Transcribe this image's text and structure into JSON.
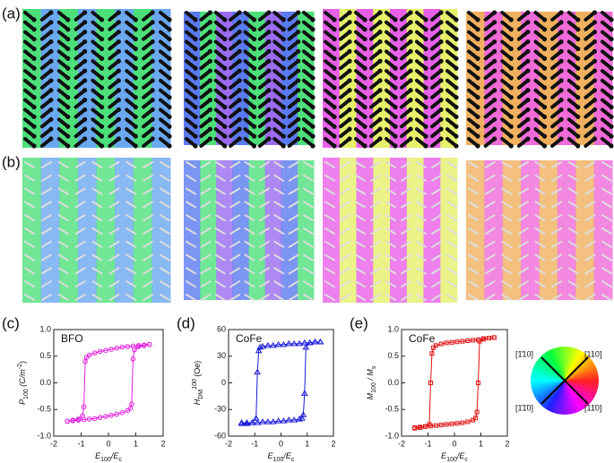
{
  "figure": {
    "panel_labels": [
      "(a)",
      "(b)"
    ],
    "wheel_labels": [
      "[1̄10]",
      "[110]",
      "[1̄1̄0]",
      "[11̄0]"
    ]
  },
  "chart_data": [
    {
      "type": "line",
      "panel": "(c)",
      "annotation": "BFO",
      "color": "#e020e0",
      "marker": "circle",
      "xlabel": [
        {
          "t": "E"
        },
        {
          "t": "100",
          "s": "sub"
        },
        {
          "t": "/E"
        },
        {
          "t": "c",
          "s": "sub"
        }
      ],
      "ylabel": [
        {
          "t": "P"
        },
        {
          "t": "100",
          "s": "sub"
        },
        {
          "t": " (C/m"
        },
        {
          "t": "-2",
          "s": "sup"
        },
        {
          "t": ")"
        }
      ],
      "x": [
        -1.5,
        -1.3,
        -1.1,
        -0.9,
        -0.7,
        -0.5,
        -0.3,
        -0.1,
        0.1,
        0.3,
        0.5,
        0.7,
        0.8,
        0.85,
        0.9,
        0.95,
        1.1,
        1.3,
        1.5,
        1.5,
        1.3,
        1.1,
        0.9,
        0.7,
        0.5,
        0.3,
        0.1,
        -0.1,
        -0.3,
        -0.5,
        -0.7,
        -0.8,
        -0.85,
        -0.9,
        -0.95,
        -1.1,
        -1.3,
        -1.5
      ],
      "values": [
        -0.72,
        -0.71,
        -0.7,
        -0.69,
        -0.68,
        -0.67,
        -0.65,
        -0.63,
        -0.61,
        -0.59,
        -0.56,
        -0.52,
        -0.48,
        -0.4,
        0.45,
        0.62,
        0.68,
        0.7,
        0.72,
        0.72,
        0.71,
        0.7,
        0.69,
        0.68,
        0.67,
        0.65,
        0.63,
        0.61,
        0.59,
        0.56,
        0.52,
        0.48,
        0.4,
        -0.45,
        -0.62,
        -0.68,
        -0.7,
        -0.72
      ],
      "xlim": [
        -2,
        2
      ],
      "xticks": [
        -2,
        -1,
        0,
        1,
        2
      ],
      "ylim": [
        -1,
        1
      ],
      "yticks": [
        {
          "value": -1,
          "label": "-1.0"
        },
        {
          "value": -0.5,
          "label": "-0.5"
        },
        {
          "value": 0,
          "label": "0.0"
        },
        {
          "value": 0.5,
          "label": "0.5"
        },
        {
          "value": 1,
          "label": "1.0"
        }
      ]
    },
    {
      "type": "line",
      "panel": "(d)",
      "annotation": "CoFe",
      "color": "#1a1adb",
      "marker": "triangle",
      "xlabel": [
        {
          "t": "E"
        },
        {
          "t": "100",
          "s": "sub"
        },
        {
          "t": "/E"
        },
        {
          "t": "c",
          "s": "sub"
        }
      ],
      "ylabel": [
        {
          "t": "H"
        },
        {
          "t": "DM",
          "s": "sub"
        },
        {
          "t": "100",
          "s": "sup"
        },
        {
          "t": " (Oe)"
        }
      ],
      "x": [
        -1.5,
        -1.3,
        -1.1,
        -0.9,
        -0.7,
        -0.5,
        -0.3,
        -0.1,
        0.1,
        0.3,
        0.5,
        0.7,
        0.8,
        0.85,
        0.9,
        0.95,
        1.1,
        1.3,
        1.5,
        1.5,
        1.3,
        1.1,
        0.9,
        0.7,
        0.5,
        0.3,
        0.1,
        -0.1,
        -0.3,
        -0.5,
        -0.7,
        -0.8,
        -0.85,
        -0.9,
        -0.95,
        -1.1,
        -1.3,
        -1.5
      ],
      "values": [
        -45,
        -45,
        -45,
        -45,
        -44,
        -44,
        -44,
        -43,
        -43,
        -42,
        -42,
        -41,
        -40,
        -36,
        -12,
        40,
        45,
        46,
        46,
        46,
        46,
        45,
        45,
        44,
        44,
        44,
        43,
        43,
        42,
        42,
        41,
        40,
        36,
        12,
        -40,
        -45,
        -46,
        -46
      ],
      "xlim": [
        -2,
        2
      ],
      "xticks": [
        -2,
        -1,
        0,
        1,
        2
      ],
      "ylim": [
        -60,
        60
      ],
      "yticks": [
        -60,
        -30,
        0,
        30,
        60
      ]
    },
    {
      "type": "line",
      "panel": "(e)",
      "annotation": "CoFe",
      "color": "#e01010",
      "marker": "square",
      "xlabel": [
        {
          "t": "E"
        },
        {
          "t": "100",
          "s": "sub"
        },
        {
          "t": "/E"
        },
        {
          "t": "c",
          "s": "sub"
        }
      ],
      "ylabel": [
        {
          "t": "M"
        },
        {
          "t": "100",
          "s": "sub"
        },
        {
          "t": " / M"
        },
        {
          "t": "s",
          "s": "sub"
        }
      ],
      "x": [
        -1.5,
        -1.3,
        -1.1,
        -0.9,
        -0.7,
        -0.5,
        -0.3,
        -0.1,
        0.1,
        0.3,
        0.5,
        0.7,
        0.8,
        0.85,
        0.9,
        0.95,
        1.1,
        1.3,
        1.5,
        1.5,
        1.3,
        1.1,
        0.9,
        0.7,
        0.5,
        0.3,
        0.1,
        -0.1,
        -0.3,
        -0.5,
        -0.7,
        -0.8,
        -0.85,
        -0.9,
        -0.95,
        -1.1,
        -1.3,
        -1.5
      ],
      "values": [
        -0.84,
        -0.83,
        -0.82,
        -0.81,
        -0.8,
        -0.79,
        -0.78,
        -0.77,
        -0.76,
        -0.75,
        -0.73,
        -0.7,
        -0.66,
        -0.55,
        0.0,
        0.78,
        0.82,
        0.84,
        0.85,
        0.85,
        0.84,
        0.83,
        0.81,
        0.8,
        0.79,
        0.78,
        0.77,
        0.76,
        0.75,
        0.73,
        0.7,
        0.66,
        0.55,
        0.0,
        -0.78,
        -0.82,
        -0.84,
        -0.85
      ],
      "xlim": [
        -2,
        2
      ],
      "xticks": [
        -2,
        -1,
        0,
        1,
        2
      ],
      "ylim": [
        -1,
        1
      ],
      "yticks": [
        {
          "value": -1,
          "label": "-1.0"
        },
        {
          "value": -0.5,
          "label": "-0.5"
        },
        {
          "value": 0,
          "label": "0.0"
        },
        {
          "value": 0.5,
          "label": "0.5"
        },
        {
          "value": 1,
          "label": "1.0"
        }
      ]
    }
  ]
}
